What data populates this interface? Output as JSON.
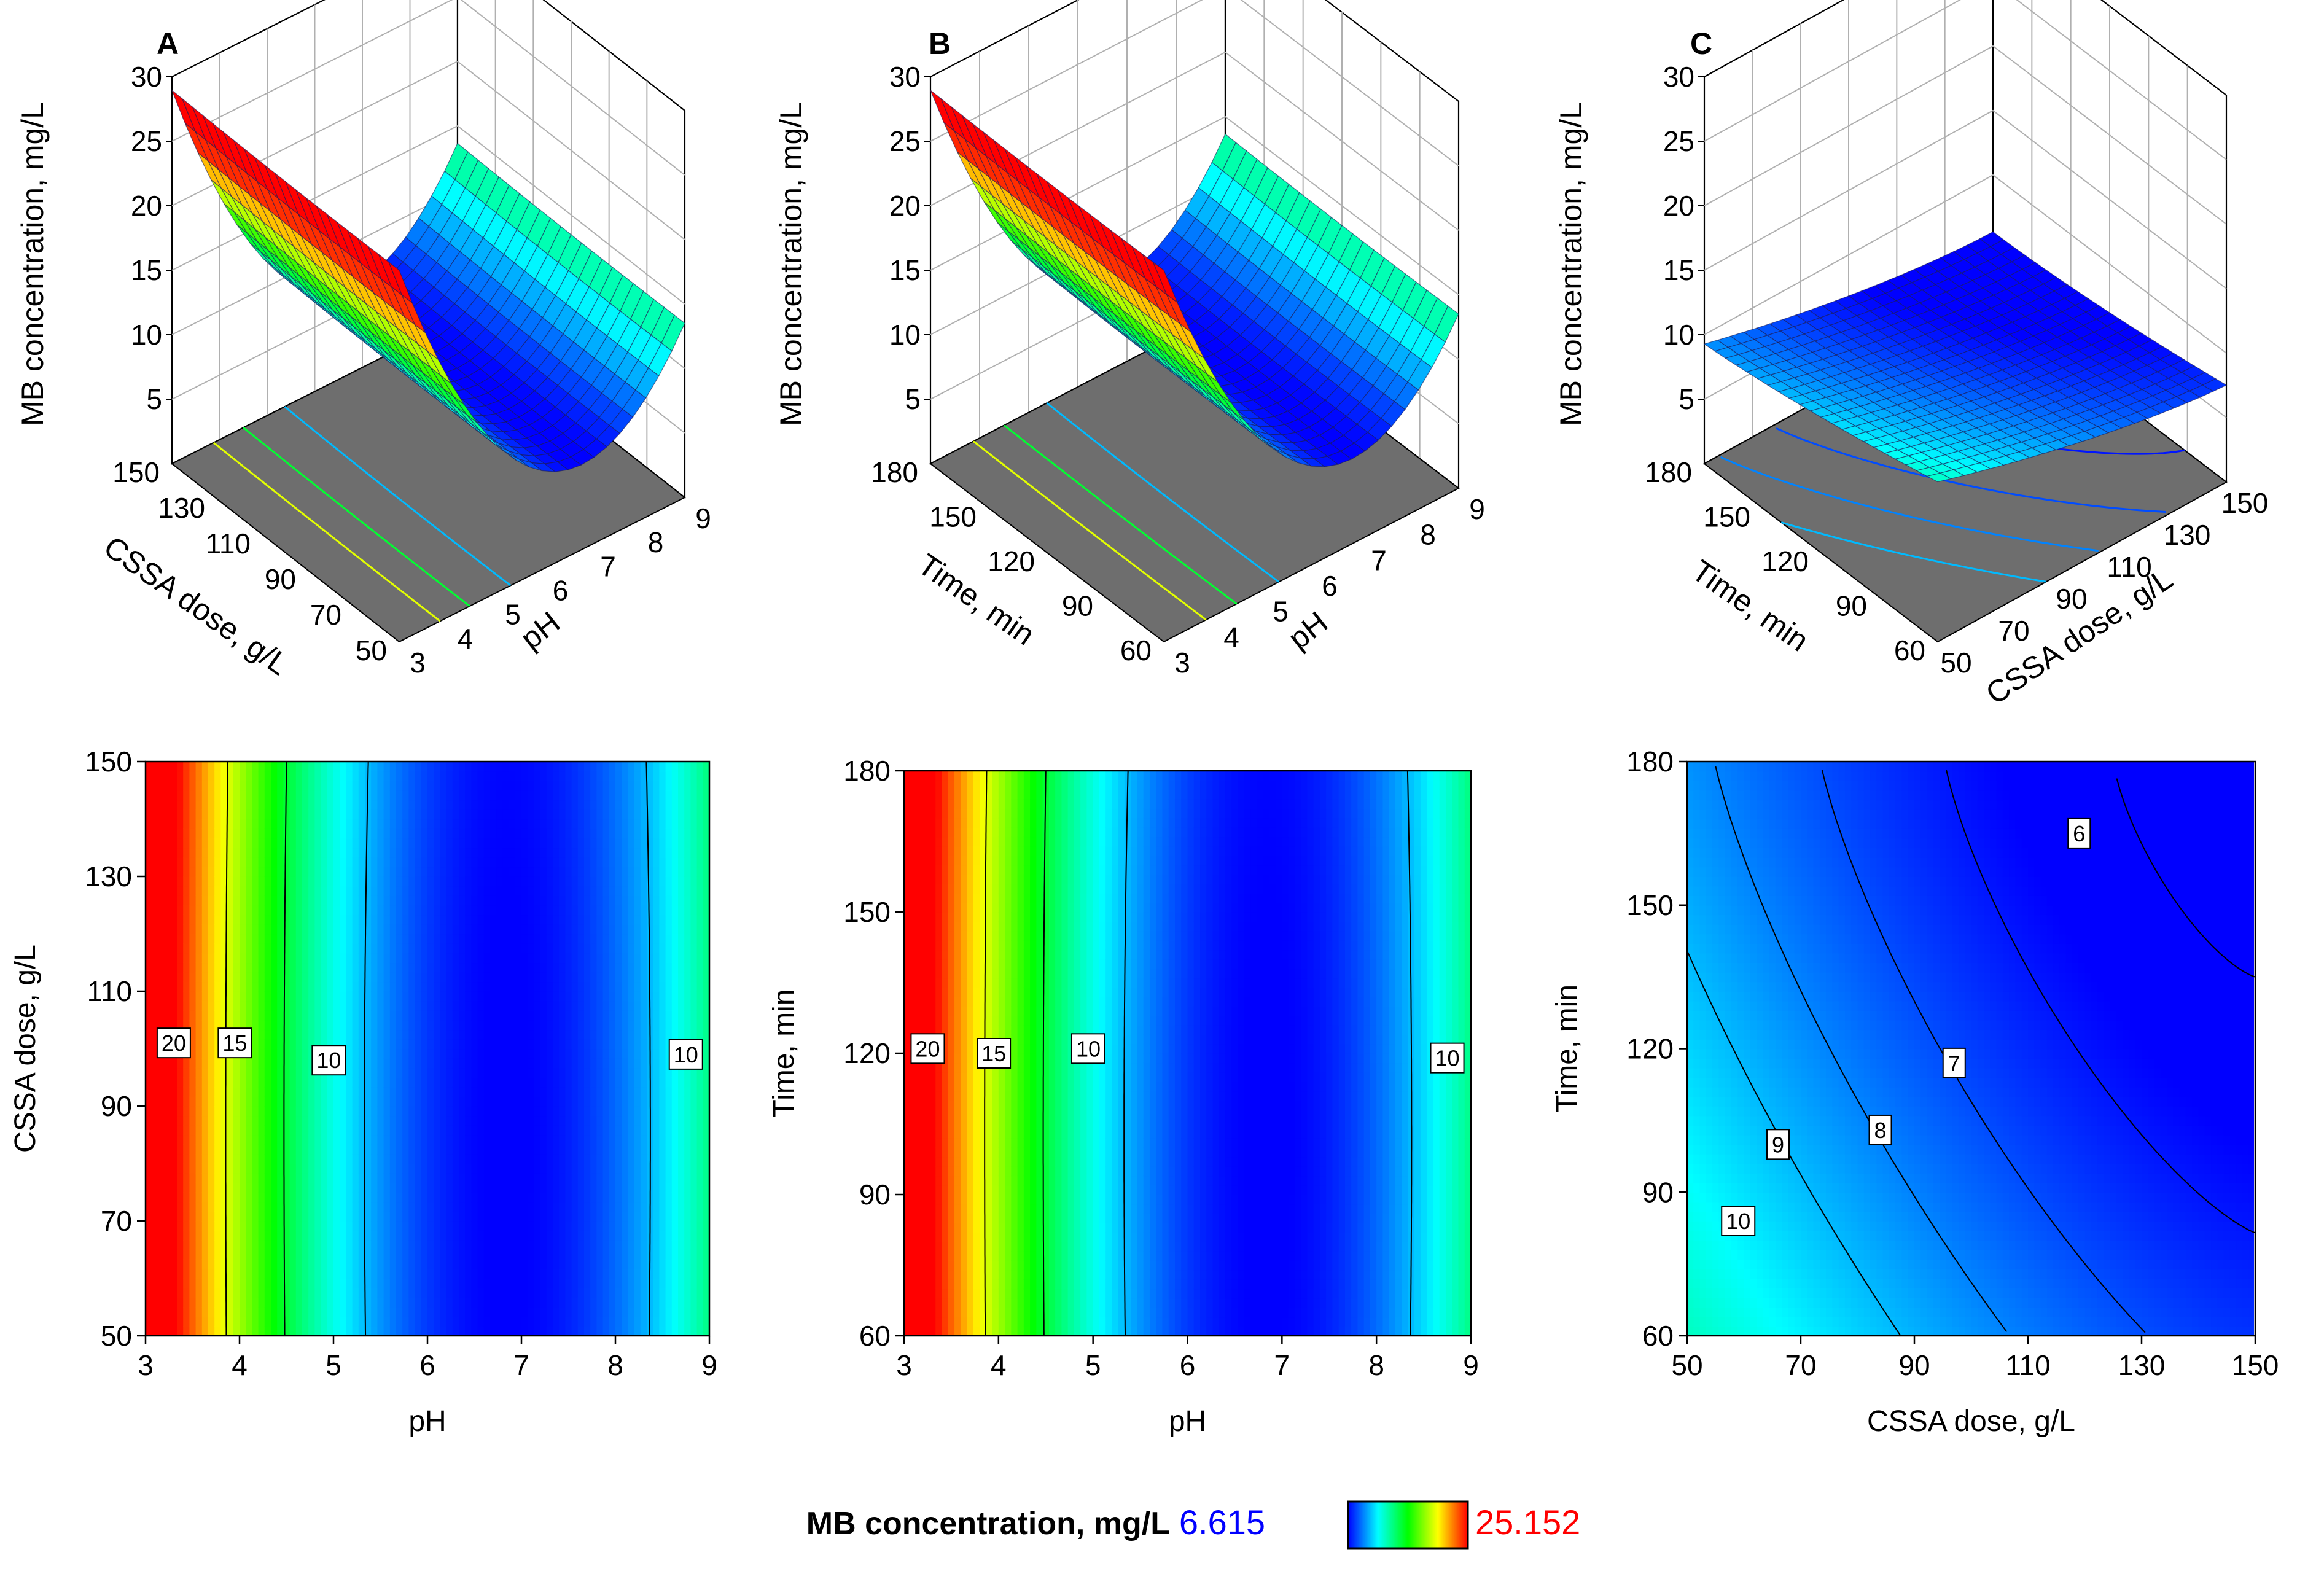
{
  "chart_data": [
    {
      "panel": "A",
      "type": "surface3d",
      "zlabel": "MB concentration, mg/L",
      "z_ticks": [
        "5",
        "10",
        "15",
        "20",
        "25",
        "30"
      ],
      "x_axis": {
        "label": "pH",
        "ticks": [
          "3",
          "4",
          "5",
          "6",
          "7",
          "8",
          "9"
        ],
        "range": [
          3,
          9
        ]
      },
      "y_axis": {
        "label": "CSSA dose, g/L",
        "ticks": [
          "50",
          "70",
          "90",
          "110",
          "130",
          "150"
        ],
        "range": [
          50,
          150
        ]
      },
      "z_range": [
        0,
        30
      ]
    },
    {
      "panel": "B",
      "type": "surface3d",
      "zlabel": "MB concentration, mg/L",
      "z_ticks": [
        "5",
        "10",
        "15",
        "20",
        "25",
        "30"
      ],
      "x_axis": {
        "label": "pH",
        "ticks": [
          "3",
          "4",
          "5",
          "6",
          "7",
          "8",
          "9"
        ],
        "range": [
          3,
          9
        ]
      },
      "y_axis": {
        "label": "Time, min",
        "ticks": [
          "60",
          "90",
          "120",
          "150",
          "180"
        ],
        "range": [
          60,
          180
        ]
      },
      "z_range": [
        0,
        30
      ]
    },
    {
      "panel": "C",
      "type": "surface3d",
      "zlabel": "MB concentration, mg/L",
      "z_ticks": [
        "5",
        "10",
        "15",
        "20",
        "25",
        "30"
      ],
      "x_axis": {
        "label": "CSSA dose, g/L",
        "ticks": [
          "50",
          "70",
          "90",
          "110",
          "130",
          "150"
        ],
        "range": [
          50,
          150
        ]
      },
      "y_axis": {
        "label": "Time, min",
        "ticks": [
          "60",
          "90",
          "120",
          "150",
          "180"
        ],
        "range": [
          60,
          180
        ]
      },
      "z_range": [
        0,
        30
      ]
    },
    {
      "panel": "A-contour",
      "type": "heatmap",
      "xlabel": "pH",
      "ylabel": "CSSA dose, g/L",
      "x_ticks": [
        "3",
        "4",
        "5",
        "6",
        "7",
        "8",
        "9"
      ],
      "xlim": [
        3,
        9
      ],
      "y_ticks": [
        "50",
        "70",
        "90",
        "110",
        "130",
        "150"
      ],
      "ylim": [
        50,
        150
      ],
      "contour_labels": [
        {
          "text": "20",
          "x": 3.3,
          "y": 101
        },
        {
          "text": "15",
          "x": 3.95,
          "y": 101
        },
        {
          "text": "10",
          "x": 4.95,
          "y": 98
        },
        {
          "text": "10",
          "x": 8.75,
          "y": 99
        }
      ]
    },
    {
      "panel": "B-contour",
      "type": "heatmap",
      "xlabel": "pH",
      "ylabel": "Time, min",
      "x_ticks": [
        "3",
        "4",
        "5",
        "6",
        "7",
        "8",
        "9"
      ],
      "xlim": [
        3,
        9
      ],
      "y_ticks": [
        "60",
        "90",
        "120",
        "150",
        "180"
      ],
      "ylim": [
        60,
        180
      ],
      "contour_labels": [
        {
          "text": "20",
          "x": 3.25,
          "y": 121
        },
        {
          "text": "15",
          "x": 3.95,
          "y": 120
        },
        {
          "text": "10",
          "x": 4.95,
          "y": 121
        },
        {
          "text": "10",
          "x": 8.75,
          "y": 119
        }
      ]
    },
    {
      "panel": "C-contour",
      "type": "heatmap",
      "xlabel": "CSSA dose, g/L",
      "ylabel": "Time, min",
      "x_ticks": [
        "50",
        "70",
        "90",
        "110",
        "130",
        "150"
      ],
      "xlim": [
        50,
        150
      ],
      "y_ticks": [
        "60",
        "90",
        "120",
        "150",
        "180"
      ],
      "ylim": [
        60,
        180
      ],
      "contour_labels": [
        {
          "text": "6",
          "x": 119,
          "y": 165
        },
        {
          "text": "7",
          "x": 97,
          "y": 117
        },
        {
          "text": "8",
          "x": 84,
          "y": 103
        },
        {
          "text": "9",
          "x": 66,
          "y": 100
        },
        {
          "text": "10",
          "x": 59,
          "y": 84
        }
      ]
    }
  ],
  "colorbar": {
    "label": "MB concentration, mg/L",
    "min": "6.615",
    "max": "25.152",
    "colors": [
      "#0000ff",
      "#00ffff",
      "#00ff00",
      "#ffff00",
      "#ff0000"
    ]
  }
}
